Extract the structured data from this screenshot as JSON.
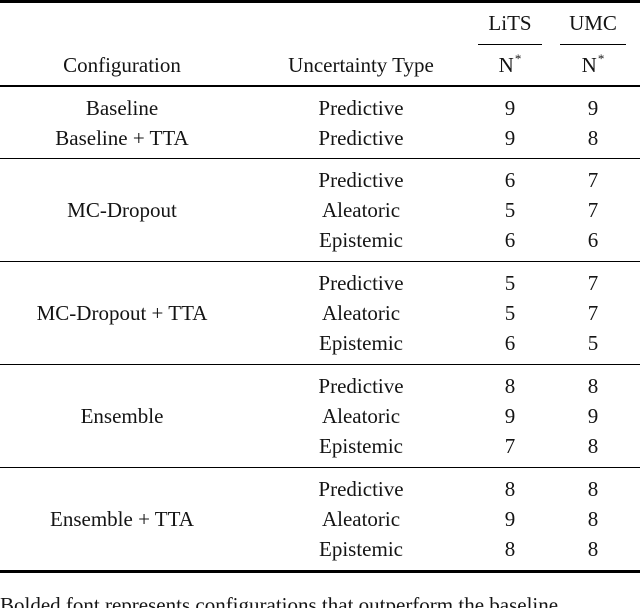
{
  "header": {
    "configuration": "Configuration",
    "uncertainty_type": "Uncertainty Type",
    "datasets": [
      {
        "name": "LiTS",
        "metric": "N",
        "metric_sup": "*"
      },
      {
        "name": "UMC",
        "metric": "N",
        "metric_sup": "*"
      }
    ]
  },
  "groups": [
    {
      "rows": [
        {
          "config": "Baseline",
          "type": "Predictive",
          "lits": "9",
          "umc": "9"
        },
        {
          "config": "Baseline + TTA",
          "type": "Predictive",
          "lits": "9",
          "umc": "8"
        }
      ]
    },
    {
      "config": "MC-Dropout",
      "rows": [
        {
          "type": "Predictive",
          "lits": "6",
          "umc": "7"
        },
        {
          "type": "Aleatoric",
          "lits": "5",
          "umc": "7"
        },
        {
          "type": "Epistemic",
          "lits": "6",
          "umc": "6"
        }
      ]
    },
    {
      "config": "MC-Dropout + TTA",
      "rows": [
        {
          "type": "Predictive",
          "lits": "5",
          "umc": "7"
        },
        {
          "type": "Aleatoric",
          "lits": "5",
          "umc": "7"
        },
        {
          "type": "Epistemic",
          "lits": "6",
          "umc": "5"
        }
      ]
    },
    {
      "config": "Ensemble",
      "rows": [
        {
          "type": "Predictive",
          "lits": "8",
          "umc": "8"
        },
        {
          "type": "Aleatoric",
          "lits": "9",
          "umc": "9"
        },
        {
          "type": "Epistemic",
          "lits": "7",
          "umc": "8"
        }
      ]
    },
    {
      "config": "Ensemble + TTA",
      "rows": [
        {
          "type": "Predictive",
          "lits": "8",
          "umc": "8"
        },
        {
          "type": "Aleatoric",
          "lits": "9",
          "umc": "8"
        },
        {
          "type": "Epistemic",
          "lits": "8",
          "umc": "8"
        }
      ]
    }
  ],
  "caption_fragment": "Bolded font represents configurations that outperform the baseline.",
  "colors": {
    "text": "#141414",
    "rule": "#000000",
    "background": "#ffffff"
  }
}
